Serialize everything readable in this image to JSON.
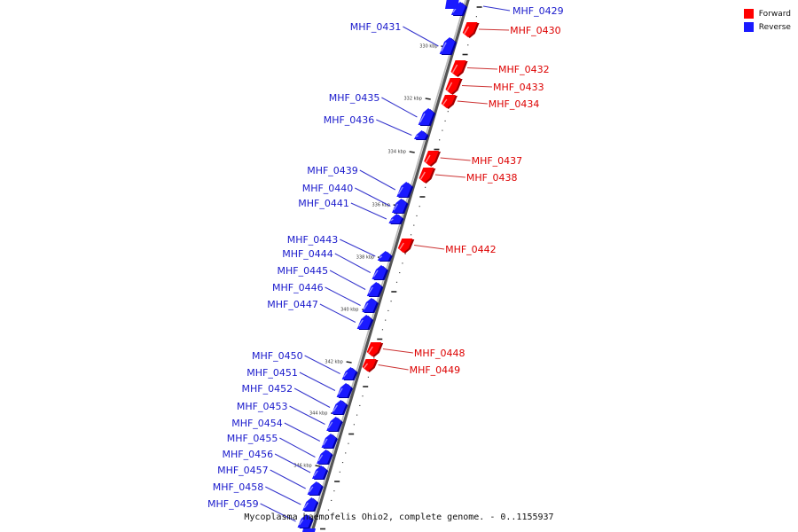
{
  "caption": "Mycoplasma haemofelis Ohio2, complete genome. - 0..1155937",
  "legend": [
    {
      "label": "Forward",
      "color": "#ff0000"
    },
    {
      "label": "Reverse",
      "color": "#1a1aff"
    }
  ],
  "colors": {
    "forward": "#ff0000",
    "reverse": "#1a1aff",
    "backbone": "#888888",
    "leader": "#3333cc",
    "leader_forward": "#cc3333"
  },
  "ticks": [
    "330 kbp",
    "332 kbp",
    "334 kbp",
    "336 kbp",
    "338 kbp",
    "340 kbp",
    "342 kbp",
    "344 kbp",
    "346 kbp"
  ],
  "genes": [
    {
      "name": "MHF_0429",
      "strand": "reverse"
    },
    {
      "name": "MHF_0430",
      "strand": "forward"
    },
    {
      "name": "MHF_0431",
      "strand": "reverse"
    },
    {
      "name": "MHF_0432",
      "strand": "forward"
    },
    {
      "name": "MHF_0433",
      "strand": "forward"
    },
    {
      "name": "MHF_0434",
      "strand": "forward"
    },
    {
      "name": "MHF_0435",
      "strand": "reverse"
    },
    {
      "name": "MHF_0436",
      "strand": "reverse"
    },
    {
      "name": "MHF_0437",
      "strand": "forward"
    },
    {
      "name": "MHF_0438",
      "strand": "forward"
    },
    {
      "name": "MHF_0439",
      "strand": "reverse"
    },
    {
      "name": "MHF_0440",
      "strand": "reverse"
    },
    {
      "name": "MHF_0441",
      "strand": "reverse"
    },
    {
      "name": "MHF_0442",
      "strand": "forward"
    },
    {
      "name": "MHF_0443",
      "strand": "reverse"
    },
    {
      "name": "MHF_0444",
      "strand": "reverse"
    },
    {
      "name": "MHF_0445",
      "strand": "reverse"
    },
    {
      "name": "MHF_0446",
      "strand": "reverse"
    },
    {
      "name": "MHF_0447",
      "strand": "reverse"
    },
    {
      "name": "MHF_0448",
      "strand": "forward"
    },
    {
      "name": "MHF_0449",
      "strand": "forward"
    },
    {
      "name": "MHF_0450",
      "strand": "reverse"
    },
    {
      "name": "MHF_0451",
      "strand": "reverse"
    },
    {
      "name": "MHF_0452",
      "strand": "reverse"
    },
    {
      "name": "MHF_0453",
      "strand": "reverse"
    },
    {
      "name": "MHF_0454",
      "strand": "reverse"
    },
    {
      "name": "MHF_0455",
      "strand": "reverse"
    },
    {
      "name": "MHF_0456",
      "strand": "reverse"
    },
    {
      "name": "MHF_0457",
      "strand": "reverse"
    },
    {
      "name": "MHF_0458",
      "strand": "reverse"
    },
    {
      "name": "MHF_0459",
      "strand": "reverse"
    }
  ]
}
